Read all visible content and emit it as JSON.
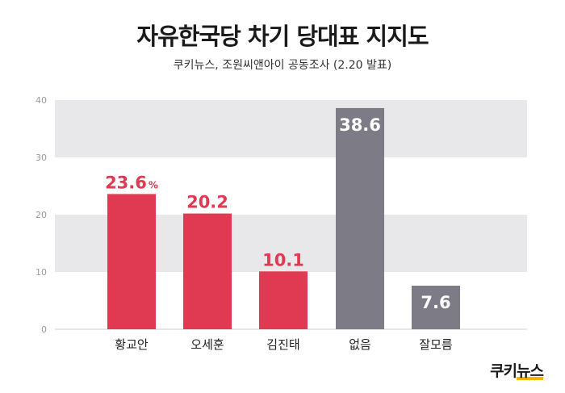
{
  "header": {
    "title": "자유한국당 차기 당대표 지지도",
    "subtitle": "쿠키뉴스, 조원씨앤아이 공동조사 (2.20 발표)"
  },
  "logo": {
    "text_main": "쿠키",
    "text_accent": "뉴스"
  },
  "chart_data": {
    "type": "bar",
    "title": "자유한국당 차기 당대표 지지도",
    "subtitle": "쿠키뉴스, 조원씨앤아이 공동조사 (2.20 발표)",
    "categories": [
      "황교안",
      "오세훈",
      "김진태",
      "없음",
      "잘모름"
    ],
    "values": [
      23.6,
      20.2,
      10.1,
      38.6,
      7.6
    ],
    "value_labels": [
      "23.6",
      "20.2",
      "10.1",
      "38.6",
      "7.6"
    ],
    "value_unit_first": "%",
    "ylim": [
      0,
      40
    ],
    "yticks": [
      0,
      10,
      20,
      30,
      40
    ],
    "xlabel": "",
    "ylabel": "",
    "grid": "alternating horizontal bands",
    "legend": "none",
    "colors": {
      "candidate": "#e03a52",
      "other": "#7c7b86",
      "band": "#e8e8ea",
      "axis_text": "#9a9a9a"
    },
    "bar_color_groups": [
      "candidate",
      "candidate",
      "candidate",
      "other",
      "other"
    ]
  }
}
